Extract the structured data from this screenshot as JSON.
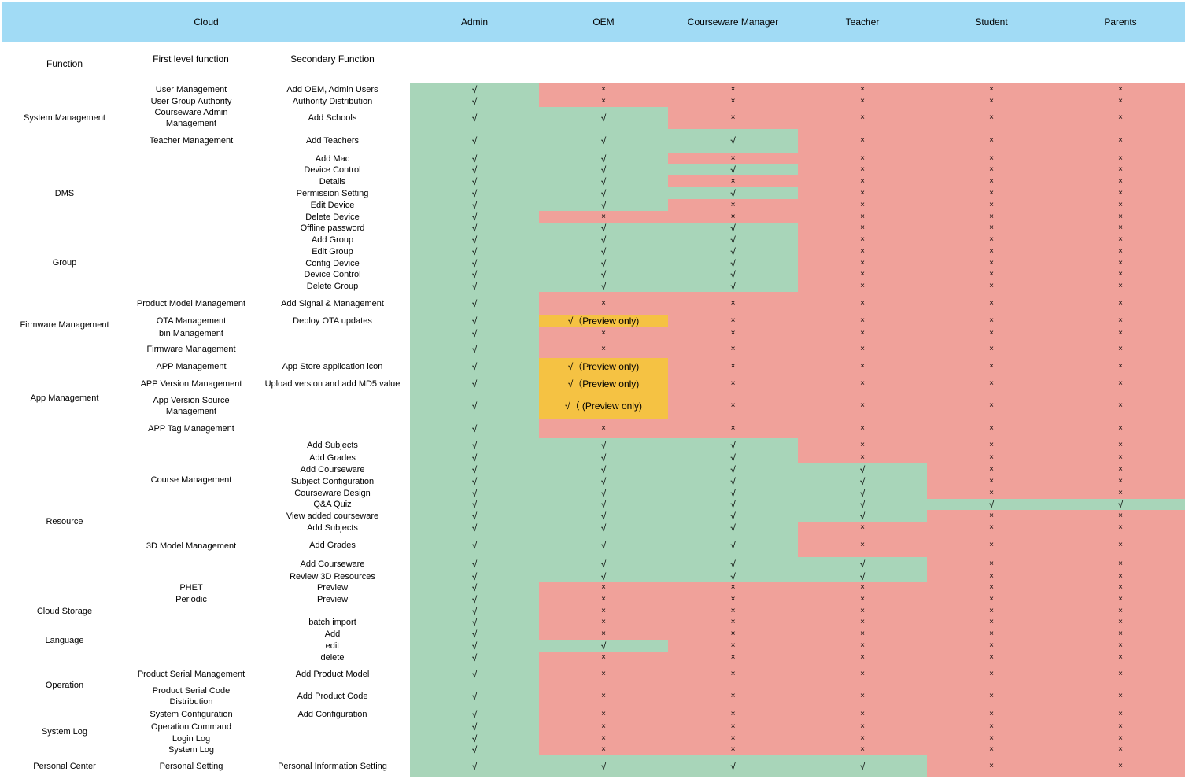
{
  "header": {
    "cloud": "Cloud",
    "roles": [
      "Admin",
      "OEM",
      "Courseware Manager",
      "Teacher",
      "Student",
      "Parents"
    ]
  },
  "subheader": {
    "function": "Function",
    "first_level": "First level function",
    "secondary": "Secondary Function"
  },
  "symbols": {
    "check": "√",
    "cross": "×"
  },
  "colors": {
    "header": "#a1dbf5",
    "allowed": "#a8d5b9",
    "denied": "#f0a19a",
    "preview": "#f5c243"
  },
  "categories": [
    {
      "label": "System Management"
    },
    {
      "label": "DMS"
    },
    {
      "label": "Group"
    },
    {
      "label": "Firmware Management"
    },
    {
      "label": "App Management"
    },
    {
      "label": "Resource"
    },
    {
      "label": "Cloud Storage"
    },
    {
      "label": "Language"
    },
    {
      "label": "Operation"
    },
    {
      "label": "System Log"
    },
    {
      "label": "Personal Center"
    }
  ],
  "first_level_labels": [
    {
      "label": "User Management"
    },
    {
      "label": "User Group Authority"
    },
    {
      "label": "Courseware Admin Management"
    },
    {
      "label": "Teacher Management"
    },
    {
      "label": "Product Model Management"
    },
    {
      "label": "OTA Management"
    },
    {
      "label": "bin Management"
    },
    {
      "label": "Firmware Management"
    },
    {
      "label": "APP Management"
    },
    {
      "label": "APP Version Management"
    },
    {
      "label": "App Version Source Management"
    },
    {
      "label": "APP Tag Management"
    },
    {
      "label": "Course Management"
    },
    {
      "label": "3D Model Management"
    },
    {
      "label": "PHET"
    },
    {
      "label": "Periodic"
    },
    {
      "label": "Product Serial Management"
    },
    {
      "label": "Product Serial Code Distribution"
    },
    {
      "label": "System Configuration"
    },
    {
      "label": "Operation Command"
    },
    {
      "label": "Login Log"
    },
    {
      "label": "System Log"
    },
    {
      "label": "Personal Setting"
    }
  ],
  "rows": [
    {
      "secondary": "Add OEM, Admin Users",
      "values": [
        "√",
        "×",
        "×",
        "×",
        "×",
        "×"
      ]
    },
    {
      "secondary": "Authority Distribution",
      "values": [
        "√",
        "×",
        "×",
        "×",
        "×",
        "×"
      ]
    },
    {
      "secondary": "Add Schools",
      "values": [
        "√",
        "√",
        "×",
        "×",
        "×",
        "×"
      ]
    },
    {
      "secondary": "Add Teachers",
      "values": [
        "√",
        "√",
        "√",
        "×",
        "×",
        "×"
      ]
    },
    {
      "secondary": "Add Mac",
      "values": [
        "√",
        "√",
        "×",
        "×",
        "×",
        "×"
      ]
    },
    {
      "secondary": "Device Control",
      "values": [
        "√",
        "√",
        "√",
        "×",
        "×",
        "×"
      ]
    },
    {
      "secondary": "Details",
      "values": [
        "√",
        "√",
        "×",
        "×",
        "×",
        "×"
      ]
    },
    {
      "secondary": "Permission Setting",
      "values": [
        "√",
        "√",
        "√",
        "×",
        "×",
        "×"
      ]
    },
    {
      "secondary": "Edit Device",
      "values": [
        "√",
        "√",
        "×",
        "×",
        "×",
        "×"
      ]
    },
    {
      "secondary": "Delete Device",
      "values": [
        "√",
        "×",
        "×",
        "×",
        "×",
        "×"
      ]
    },
    {
      "secondary": "Offline password",
      "values": [
        "√",
        "√",
        "√",
        "×",
        "×",
        "×"
      ]
    },
    {
      "secondary": "Add Group",
      "values": [
        "√",
        "√",
        "√",
        "×",
        "×",
        "×"
      ]
    },
    {
      "secondary": "Edit Group",
      "values": [
        "√",
        "√",
        "√",
        "×",
        "×",
        "×"
      ]
    },
    {
      "secondary": "Config Device",
      "values": [
        "√",
        "√",
        "√",
        "×",
        "×",
        "×"
      ]
    },
    {
      "secondary": "Device Control",
      "values": [
        "√",
        "√",
        "√",
        "×",
        "×",
        "×"
      ]
    },
    {
      "secondary": "Delete Group",
      "values": [
        "√",
        "√",
        "√",
        "×",
        "×",
        "×"
      ]
    },
    {
      "secondary": "Add Signal & Management",
      "values": [
        "√",
        "×",
        "×",
        "×",
        "×",
        "×"
      ]
    },
    {
      "secondary": "Deploy OTA updates",
      "values": [
        "√",
        "√（Preview only)",
        "×",
        "×",
        "×",
        "×"
      ]
    },
    {
      "secondary": "",
      "values": [
        "√",
        "×",
        "×",
        "×",
        "×",
        "×"
      ]
    },
    {
      "secondary": "",
      "values": [
        "√",
        "×",
        "×",
        "×",
        "×",
        "×"
      ]
    },
    {
      "secondary": "App Store application icon",
      "values": [
        "√",
        "√（Preview only)",
        "×",
        "×",
        "×",
        "×"
      ]
    },
    {
      "secondary": "Upload version and add MD5 value",
      "values": [
        "√",
        "√（Preview only)",
        "×",
        "×",
        "×",
        "×"
      ]
    },
    {
      "secondary": "",
      "values": [
        "√",
        "√（ (Preview only)",
        "×",
        "×",
        "×",
        "×"
      ]
    },
    {
      "secondary": "",
      "values": [
        "√",
        "×",
        "×",
        "×",
        "×",
        "×"
      ]
    },
    {
      "secondary": "Add Subjects",
      "values": [
        "√",
        "√",
        "√",
        "×",
        "×",
        "×"
      ]
    },
    {
      "secondary": "Add Grades",
      "values": [
        "√",
        "√",
        "√",
        "×",
        "×",
        "×"
      ]
    },
    {
      "secondary": "Add Courseware",
      "values": [
        "√",
        "√",
        "√",
        "√",
        "×",
        "×"
      ]
    },
    {
      "secondary": "Subject Configuration",
      "values": [
        "√",
        "√",
        "√",
        "√",
        "×",
        "×"
      ]
    },
    {
      "secondary": "Courseware Design",
      "values": [
        "√",
        "√",
        "√",
        "√",
        "×",
        "×"
      ]
    },
    {
      "secondary": "Q&A Quiz",
      "values": [
        "√",
        "√",
        "√",
        "√",
        "√",
        "√"
      ]
    },
    {
      "secondary": "View added courseware",
      "values": [
        "√",
        "√",
        "√",
        "√",
        "×",
        "×"
      ]
    },
    {
      "secondary": "Add Subjects",
      "values": [
        "√",
        "√",
        "√",
        "×",
        "×",
        "×"
      ]
    },
    {
      "secondary": "Add Grades",
      "values": [
        "√",
        "√",
        "√",
        "×",
        "×",
        "×"
      ]
    },
    {
      "secondary": "Add Courseware",
      "values": [
        "√",
        "√",
        "√",
        "√",
        "×",
        "×"
      ]
    },
    {
      "secondary": "Review 3D Resources",
      "values": [
        "√",
        "√",
        "√",
        "√",
        "×",
        "×"
      ]
    },
    {
      "secondary": "Preview",
      "values": [
        "√",
        "×",
        "×",
        "×",
        "×",
        "×"
      ]
    },
    {
      "secondary": "Preview",
      "values": [
        "√",
        "×",
        "×",
        "×",
        "×",
        "×"
      ]
    },
    {
      "secondary": "",
      "values": [
        "√",
        "×",
        "×",
        "×",
        "×",
        "×"
      ]
    },
    {
      "secondary": "batch import",
      "values": [
        "√",
        "×",
        "×",
        "×",
        "×",
        "×"
      ]
    },
    {
      "secondary": "Add",
      "values": [
        "√",
        "×",
        "×",
        "×",
        "×",
        "×"
      ]
    },
    {
      "secondary": "edit",
      "values": [
        "√",
        "√",
        "×",
        "×",
        "×",
        "×"
      ]
    },
    {
      "secondary": "delete",
      "values": [
        "√",
        "×",
        "×",
        "×",
        "×",
        "×"
      ]
    },
    {
      "secondary": "Add Product Model",
      "values": [
        "√",
        "×",
        "×",
        "×",
        "×",
        "×"
      ]
    },
    {
      "secondary": "Add Product Code",
      "values": [
        "√",
        "×",
        "×",
        "×",
        "×",
        "×"
      ]
    },
    {
      "secondary": "Add Configuration",
      "values": [
        "√",
        "×",
        "×",
        "×",
        "×",
        "×"
      ]
    },
    {
      "secondary": "",
      "values": [
        "√",
        "×",
        "×",
        "×",
        "×",
        "×"
      ]
    },
    {
      "secondary": "",
      "values": [
        "√",
        "×",
        "×",
        "×",
        "×",
        "×"
      ]
    },
    {
      "secondary": "",
      "values": [
        "√",
        "×",
        "×",
        "×",
        "×",
        "×"
      ]
    },
    {
      "secondary": "Personal Information Setting",
      "values": [
        "√",
        "√",
        "√",
        "√",
        "×",
        "×"
      ]
    }
  ]
}
